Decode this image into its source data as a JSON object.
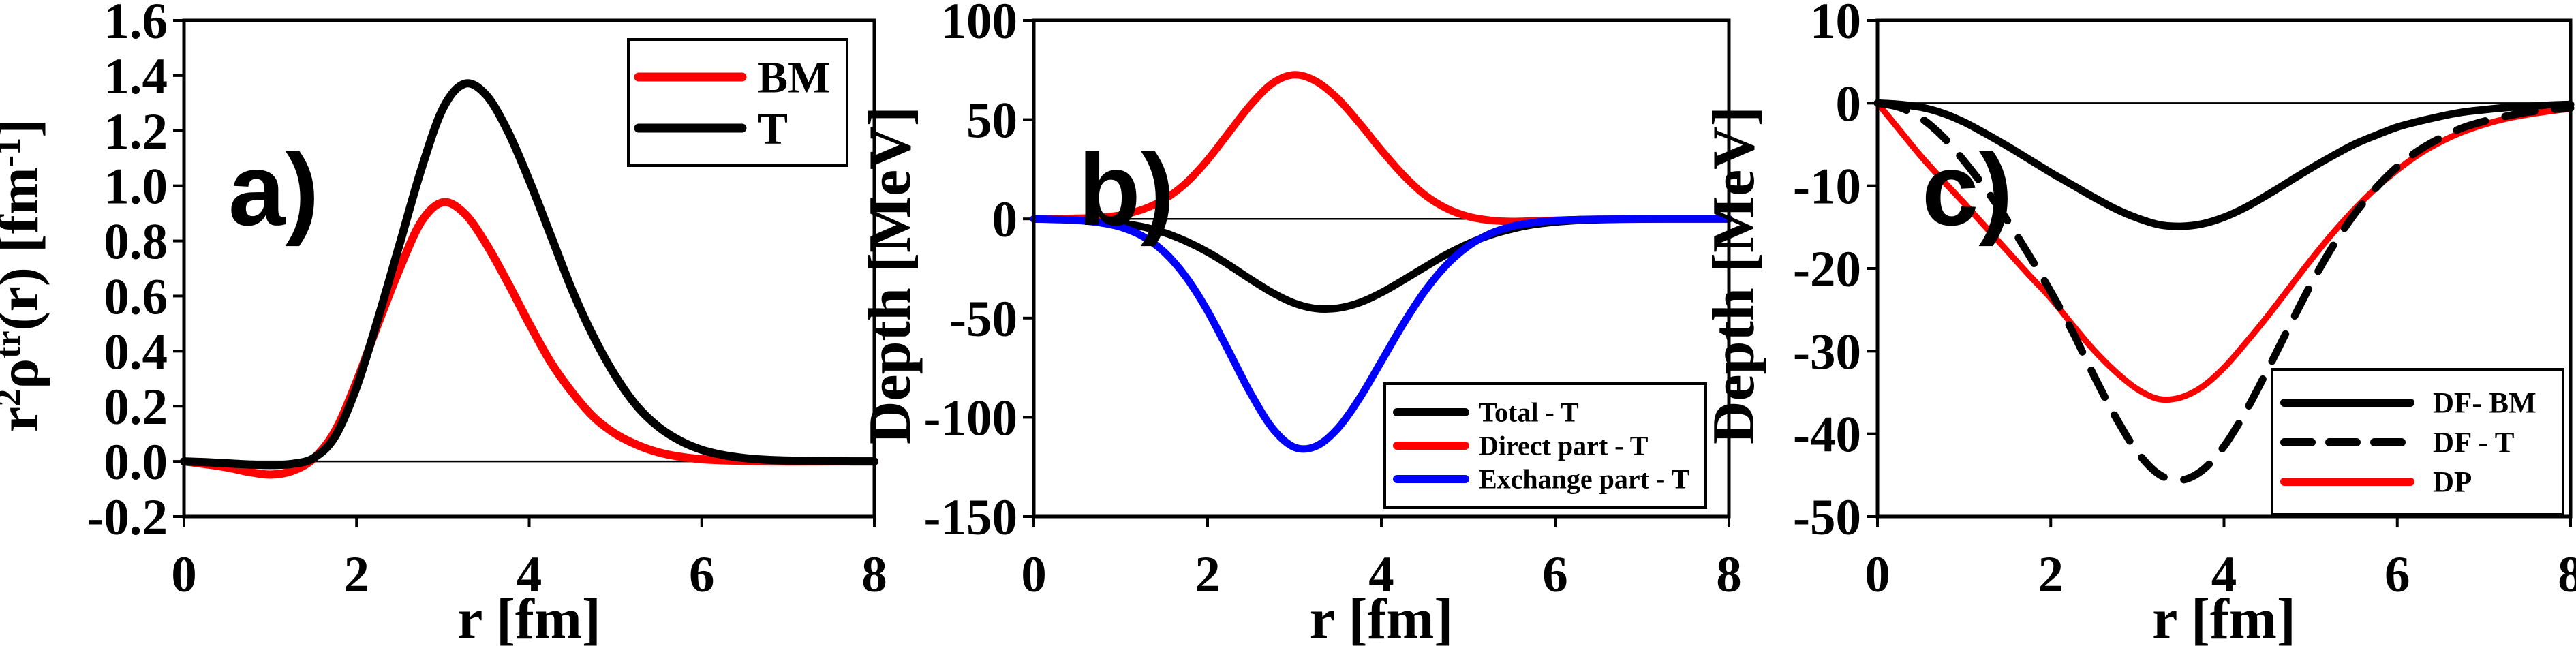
{
  "figure": {
    "background": "#ffffff",
    "black": "#000000",
    "red": "#ff0000",
    "blue": "#0000ff",
    "frame_color": "#000000"
  },
  "chart_data": [
    {
      "id": "a",
      "panel_label": "a)",
      "type": "line",
      "xlabel": "r [fm]",
      "ylabel_parts": [
        {
          "t": "r"
        },
        {
          "t": "2",
          "sup": true
        },
        {
          "t": "ρ"
        },
        {
          "t": "tr",
          "sup": true
        },
        {
          "t": "(r) [fm"
        },
        {
          "t": "-1",
          "sup": true
        },
        {
          "t": "]"
        }
      ],
      "xlim": [
        0,
        8
      ],
      "ylim": [
        -0.2,
        1.6
      ],
      "grid": false,
      "zero_line": true,
      "legend_position": "top-right",
      "xticks": [
        {
          "v": 0,
          "label": "0"
        },
        {
          "v": 2,
          "label": "2"
        },
        {
          "v": 4,
          "label": "4"
        },
        {
          "v": 6,
          "label": "6"
        },
        {
          "v": 8,
          "label": "8"
        }
      ],
      "yticks": [
        {
          "v": 1.6,
          "label": "1.6"
        },
        {
          "v": 1.4,
          "label": "1.4"
        },
        {
          "v": 1.2,
          "label": "1.2"
        },
        {
          "v": 1.0,
          "label": "1.0"
        },
        {
          "v": 0.8,
          "label": "0.8"
        },
        {
          "v": 0.6,
          "label": "0.6"
        },
        {
          "v": 0.4,
          "label": "0.4"
        },
        {
          "v": 0.2,
          "label": "0.2"
        },
        {
          "v": 0.0,
          "label": "0.0"
        },
        {
          "v": -0.2,
          "label": "-0.2"
        }
      ],
      "x_start": 0,
      "x_step": 0.25,
      "series": [
        {
          "name": "BM",
          "color": "#ff0000",
          "style": "solid",
          "values": [
            0,
            -0.01,
            -0.022,
            -0.038,
            -0.048,
            -0.035,
            0.01,
            0.11,
            0.29,
            0.5,
            0.7,
            0.87,
            0.94,
            0.9,
            0.79,
            0.65,
            0.5,
            0.36,
            0.25,
            0.16,
            0.1,
            0.06,
            0.033,
            0.017,
            0.008,
            0.004,
            0.002,
            0.001,
            0,
            0,
            0,
            0,
            0
          ]
        },
        {
          "name": "T",
          "color": "#000000",
          "style": "solid",
          "values": [
            0,
            -0.003,
            -0.007,
            -0.011,
            -0.013,
            -0.009,
            0.012,
            0.09,
            0.27,
            0.52,
            0.79,
            1.06,
            1.28,
            1.37,
            1.33,
            1.2,
            1.02,
            0.82,
            0.62,
            0.45,
            0.31,
            0.2,
            0.125,
            0.075,
            0.042,
            0.023,
            0.012,
            0.006,
            0.003,
            0.002,
            0.001,
            0,
            0
          ]
        }
      ]
    },
    {
      "id": "b",
      "panel_label": "b)",
      "type": "line",
      "xlabel": "r [fm]",
      "ylabel_parts": [
        {
          "t": "Depth [MeV]"
        }
      ],
      "xlim": [
        0,
        8
      ],
      "ylim": [
        -150,
        100
      ],
      "grid": false,
      "zero_line": true,
      "legend_position": "bottom-right",
      "xticks": [
        {
          "v": 0,
          "label": "0"
        },
        {
          "v": 2,
          "label": "2"
        },
        {
          "v": 4,
          "label": "4"
        },
        {
          "v": 6,
          "label": "6"
        },
        {
          "v": 8,
          "label": "8"
        }
      ],
      "yticks": [
        {
          "v": 100,
          "label": "100"
        },
        {
          "v": 50,
          "label": "50"
        },
        {
          "v": 0,
          "label": "0"
        },
        {
          "v": -50,
          "label": "-50"
        },
        {
          "v": -100,
          "label": "-100"
        },
        {
          "v": -150,
          "label": "-150"
        }
      ],
      "x_start": 0,
      "x_step": 0.25,
      "series": [
        {
          "name": "Total - T",
          "color": "#000000",
          "style": "solid",
          "values": [
            0,
            -0.2,
            -0.6,
            -1.1,
            -2.2,
            -4,
            -6.9,
            -11.2,
            -16.7,
            -23.4,
            -30.6,
            -37.3,
            -42.5,
            -45.2,
            -45,
            -42.2,
            -37.2,
            -30.9,
            -24.3,
            -17.9,
            -12.5,
            -8.2,
            -5.1,
            -2.9,
            -1.6,
            -0.8,
            -0.4,
            -0.2,
            -0.1,
            0,
            0,
            0,
            0
          ]
        },
        {
          "name": "Direct part - T",
          "color": "#ff0000",
          "style": "solid",
          "values": [
            0,
            0.1,
            0.3,
            0.7,
            1.9,
            4.7,
            9.8,
            18,
            29.7,
            43.8,
            57.7,
            68.4,
            72.6,
            69.3,
            60.5,
            48.1,
            34.6,
            22.2,
            12.1,
            5.3,
            1.2,
            -0.7,
            -1.3,
            -1,
            -0.7,
            -0.4,
            -0.2,
            -0.1,
            0,
            0,
            0,
            0,
            0
          ]
        },
        {
          "name": "Exchange part - T",
          "color": "#0000ff",
          "style": "solid",
          "values": [
            0,
            -0.3,
            -0.7,
            -1.8,
            -4.1,
            -8.7,
            -16.7,
            -29.2,
            -46.4,
            -67.2,
            -88.3,
            -105.7,
            -115.1,
            -114.5,
            -105.5,
            -90.3,
            -71.8,
            -53.1,
            -36.4,
            -23.2,
            -13.7,
            -7.5,
            -3.8,
            -1.9,
            -0.9,
            -0.4,
            -0.2,
            -0.1,
            0,
            0,
            0,
            0,
            0
          ]
        }
      ]
    },
    {
      "id": "c",
      "panel_label": "c)",
      "type": "line",
      "xlabel": "r [fm]",
      "ylabel_parts": [
        {
          "t": "Depth [MeV]"
        }
      ],
      "xlim": [
        0,
        8
      ],
      "ylim": [
        -50,
        10
      ],
      "grid": false,
      "zero_line": true,
      "legend_position": "bottom-right",
      "xticks": [
        {
          "v": 0,
          "label": "0"
        },
        {
          "v": 2,
          "label": "2"
        },
        {
          "v": 4,
          "label": "4"
        },
        {
          "v": 6,
          "label": "6"
        },
        {
          "v": 8,
          "label": "8"
        }
      ],
      "yticks": [
        {
          "v": 10,
          "label": "10"
        },
        {
          "v": 0,
          "label": "0"
        },
        {
          "v": -10,
          "label": "-10"
        },
        {
          "v": -20,
          "label": "-20"
        },
        {
          "v": -30,
          "label": "-30"
        },
        {
          "v": -40,
          "label": "-40"
        },
        {
          "v": -50,
          "label": "-50"
        }
      ],
      "x_start": 0,
      "x_step": 0.25,
      "series": [
        {
          "name": "DF- BM",
          "color": "#000000",
          "style": "solid",
          "values": [
            0,
            -0.15,
            -0.5,
            -1.2,
            -2.3,
            -3.7,
            -5.2,
            -6.8,
            -8.4,
            -9.9,
            -11.4,
            -12.8,
            -13.9,
            -14.7,
            -14.9,
            -14.6,
            -13.8,
            -12.6,
            -11.1,
            -9.5,
            -7.9,
            -6.4,
            -5,
            -3.9,
            -2.9,
            -2.2,
            -1.6,
            -1.1,
            -0.8,
            -0.55,
            -0.4,
            -0.25,
            -0.15
          ]
        },
        {
          "name": "DF - T",
          "color": "#000000",
          "style": "dashed",
          "values": [
            0,
            -0.5,
            -1.8,
            -4,
            -7,
            -10.4,
            -14.2,
            -18.4,
            -22.8,
            -27.6,
            -33,
            -38,
            -42.2,
            -44.9,
            -45.6,
            -44.4,
            -41.5,
            -37.3,
            -32.3,
            -27.1,
            -22,
            -17.4,
            -13.5,
            -10.3,
            -7.7,
            -5.7,
            -4.2,
            -3,
            -2.2,
            -1.6,
            -1.1,
            -0.8,
            -0.6
          ]
        },
        {
          "name": "DP",
          "color": "#ff0000",
          "style": "solid",
          "values": [
            0,
            -3.2,
            -6.4,
            -9.3,
            -12.1,
            -15,
            -17.9,
            -20.8,
            -23.6,
            -26.8,
            -29.9,
            -32.5,
            -34.6,
            -35.8,
            -35.6,
            -34.3,
            -32,
            -29,
            -25.8,
            -22.4,
            -19,
            -15.8,
            -12.9,
            -10.3,
            -8.1,
            -6.2,
            -4.7,
            -3.5,
            -2.6,
            -1.9,
            -1.4,
            -1,
            -0.7
          ]
        }
      ]
    }
  ]
}
